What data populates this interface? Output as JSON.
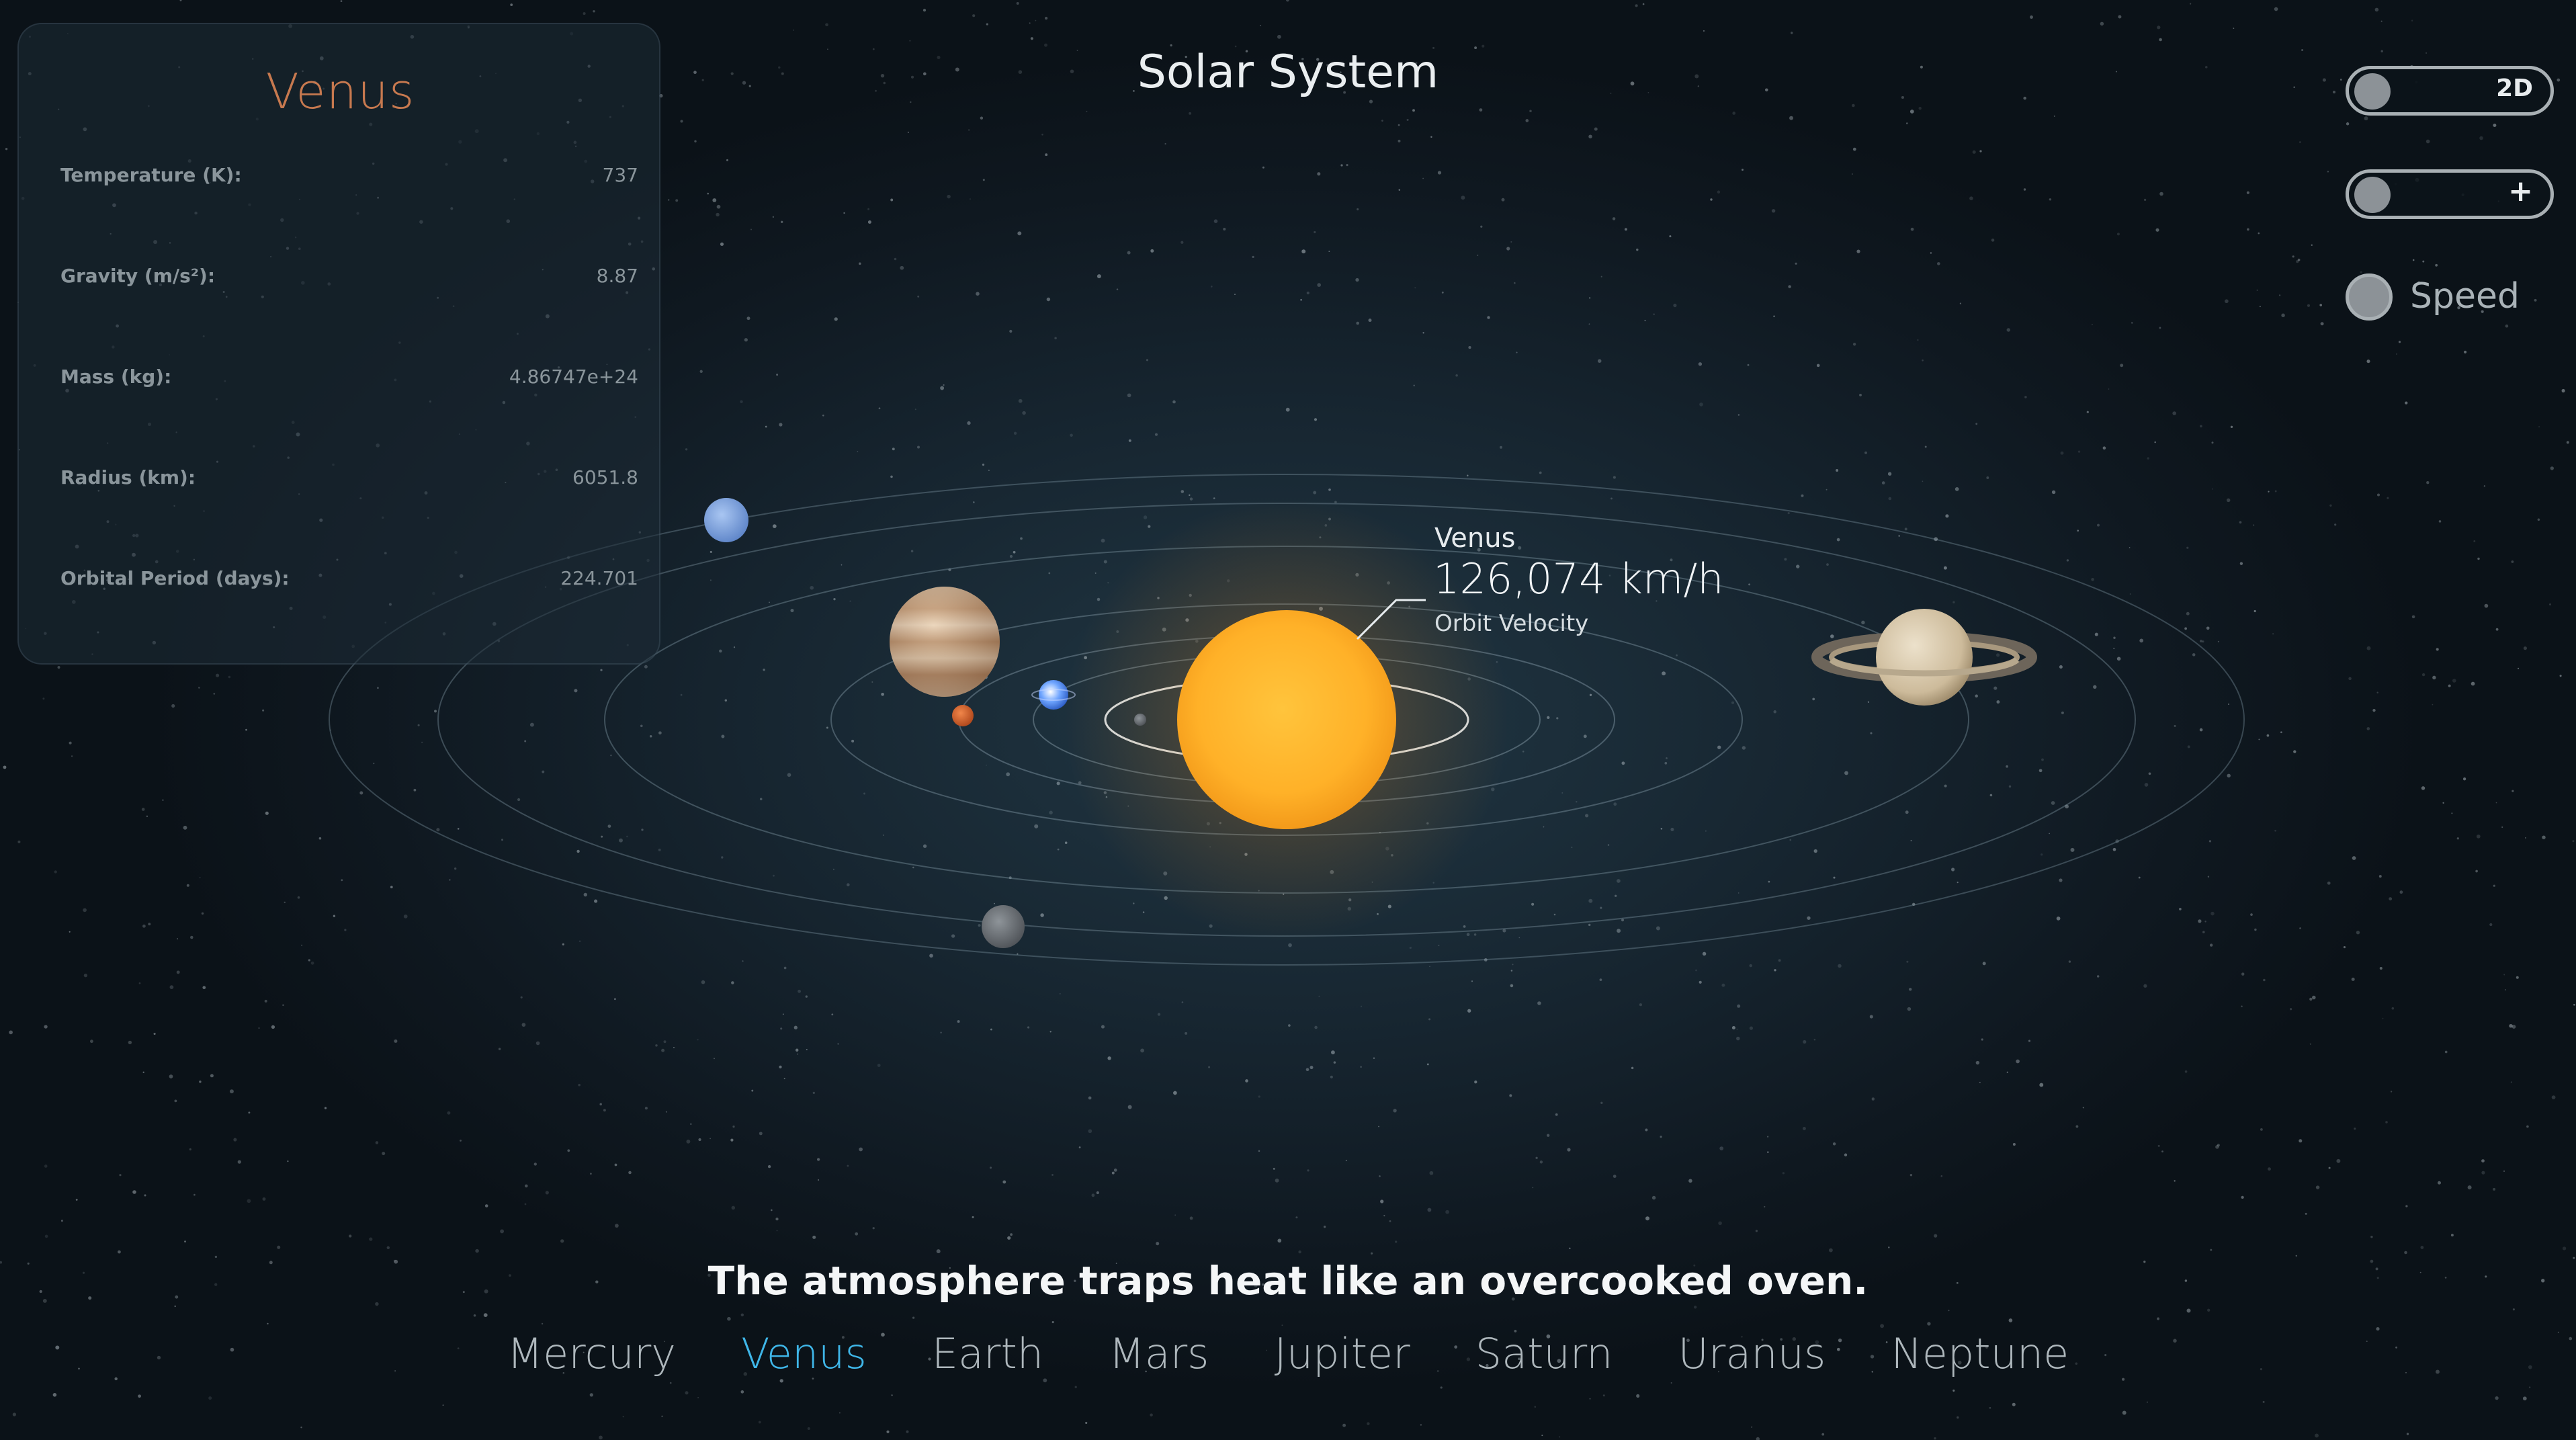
{
  "app": {
    "title": "Solar System"
  },
  "info_panel": {
    "planet_name": "Venus",
    "rows": [
      {
        "label": "Temperature (K):",
        "value": "737"
      },
      {
        "label": "Gravity (m/s²):",
        "value": "8.87"
      },
      {
        "label": "Mass (kg):",
        "value": "4.86747e+24"
      },
      {
        "label": "Radius (km):",
        "value": "6051.8"
      },
      {
        "label": "Orbital Period (days):",
        "value": "224.701"
      }
    ]
  },
  "controls": {
    "view_toggle_label": "2D",
    "zoom_toggle_label": "+",
    "speed_label": "Speed"
  },
  "velocity_callout": {
    "planet": "Venus",
    "value": "126,074 km/h",
    "caption": "Orbit Velocity"
  },
  "fact": "The atmosphere traps heat like an overcooked oven.",
  "nav": {
    "planets": [
      "Mercury",
      "Venus",
      "Earth",
      "Mars",
      "Jupiter",
      "Saturn",
      "Uranus",
      "Neptune"
    ],
    "active": "Venus"
  },
  "colors": {
    "accent_active": "#3fb6e8",
    "panel_title": "#c7794f",
    "sun": "#ffb22b",
    "background": "#172631"
  }
}
